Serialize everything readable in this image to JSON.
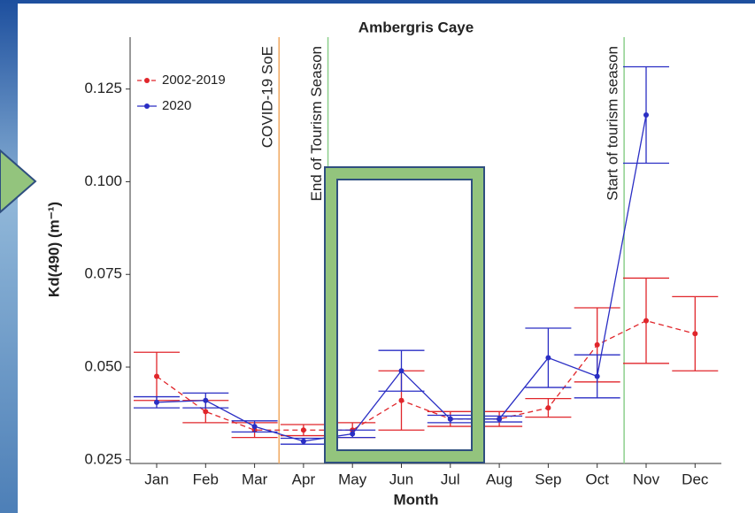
{
  "chart_data": {
    "type": "line",
    "title": "Ambergris Caye",
    "x_label": "Month",
    "y_label": "Kd(490) (m⁻¹)",
    "categories": [
      "Jan",
      "Feb",
      "Mar",
      "Apr",
      "May",
      "Jun",
      "Jul",
      "Aug",
      "Sep",
      "Oct",
      "Nov",
      "Dec"
    ],
    "series": [
      {
        "name": "2002-2019",
        "color": "#e0262b",
        "dash": true,
        "values": [
          0.0475,
          0.038,
          0.033,
          0.033,
          0.033,
          0.041,
          0.036,
          0.036,
          0.039,
          0.056,
          0.0625,
          0.059
        ],
        "errors": [
          0.0065,
          0.003,
          0.002,
          0.0015,
          0.002,
          0.008,
          0.002,
          0.002,
          0.0025,
          0.01,
          0.0115,
          0.01
        ]
      },
      {
        "name": "2020",
        "color": "#2a2ec4",
        "dash": false,
        "values": [
          0.0405,
          0.041,
          0.034,
          0.03,
          0.032,
          0.049,
          0.036,
          0.036,
          0.0525,
          0.0475,
          0.118,
          null
        ],
        "errors": [
          0.0015,
          0.002,
          0.0015,
          0.0008,
          0.001,
          0.0055,
          0.001,
          0.0008,
          0.008,
          0.0058,
          0.013,
          null
        ]
      }
    ],
    "annotations": [
      {
        "text": "COVID-19 SoE",
        "x": 2.5,
        "color": "#f0a860"
      },
      {
        "text": "End of Tourism Season",
        "x": 3.5,
        "color": "#8ccf8c"
      },
      {
        "text": "Start of tourism season",
        "x": 9.55,
        "color": "#8ccf8c"
      }
    ],
    "ylim": [
      0.024,
      0.139
    ],
    "yticks": [
      0.025,
      {
        "value": 0.05,
        "label": "0.050"
      },
      0.075,
      {
        "value": 0.1,
        "label": "0.100"
      },
      0.125
    ],
    "legend": "top-left",
    "grid": false
  }
}
